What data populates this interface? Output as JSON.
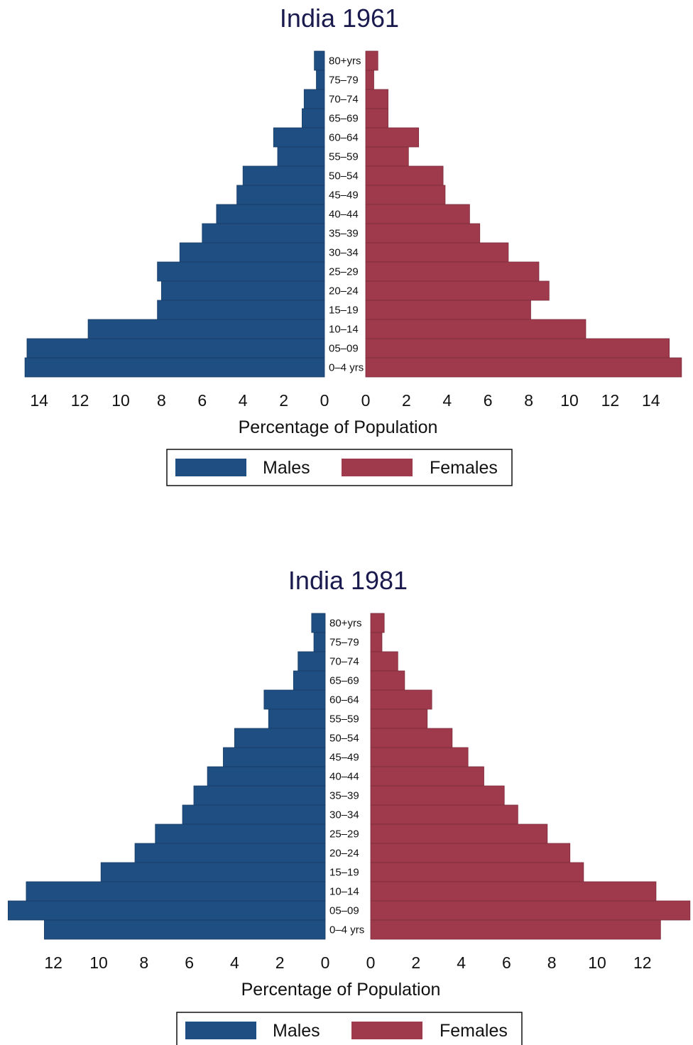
{
  "chart_data": [
    {
      "type": "bar",
      "orientation": "horizontal-pyramid",
      "title": "India 1961",
      "xlabel": "Percentage of Population",
      "categories": [
        "80+yrs",
        "75–79",
        "70–74",
        "65–69",
        "60–64",
        "55–59",
        "50–54",
        "45–49",
        "40–44",
        "35–39",
        "30–34",
        "25–29",
        "20–24",
        "15–19",
        "10–14",
        "05–09",
        "0–4 yrs"
      ],
      "series": [
        {
          "name": "Males",
          "color": "#1f4e82",
          "values": [
            0.5,
            0.4,
            1.0,
            1.1,
            2.5,
            2.3,
            4.0,
            4.3,
            5.3,
            6.0,
            7.1,
            8.2,
            8.0,
            8.2,
            11.6,
            14.6,
            14.7
          ]
        },
        {
          "name": "Females",
          "color": "#9e3a4c",
          "values": [
            0.6,
            0.4,
            1.1,
            1.1,
            2.6,
            2.1,
            3.8,
            3.9,
            5.1,
            5.6,
            7.0,
            8.5,
            9.0,
            8.1,
            10.8,
            14.9,
            15.5
          ]
        }
      ],
      "xticks": [
        "14",
        "12",
        "10",
        "8",
        "6",
        "4",
        "2",
        "0"
      ],
      "xlim": [
        0,
        15.5
      ],
      "grid": false,
      "legend": "bottom"
    },
    {
      "type": "bar",
      "orientation": "horizontal-pyramid",
      "title": "India 1981",
      "xlabel": "Percentage of Population",
      "categories": [
        "80+yrs",
        "75–79",
        "70–74",
        "65–69",
        "60–64",
        "55–59",
        "50–54",
        "45–49",
        "40–44",
        "35–39",
        "30–34",
        "25–29",
        "20–24",
        "15–19",
        "10–14",
        "05–09",
        "0–4 yrs"
      ],
      "series": [
        {
          "name": "Males",
          "color": "#1f4e82",
          "values": [
            0.6,
            0.5,
            1.2,
            1.4,
            2.7,
            2.5,
            4.0,
            4.5,
            5.2,
            5.8,
            6.3,
            7.5,
            8.4,
            9.9,
            13.2,
            14.0,
            12.4
          ]
        },
        {
          "name": "Females",
          "color": "#9e3a4c",
          "values": [
            0.6,
            0.5,
            1.2,
            1.5,
            2.7,
            2.5,
            3.6,
            4.3,
            5.0,
            5.9,
            6.5,
            7.8,
            8.8,
            9.4,
            12.6,
            14.1,
            12.8
          ]
        }
      ],
      "xticks": [
        "12",
        "10",
        "8",
        "6",
        "4",
        "2",
        "0"
      ],
      "xlim": [
        0,
        14.2
      ],
      "grid": false,
      "legend": "bottom"
    }
  ],
  "legend": {
    "males_label": "Males",
    "females_label": "Females"
  }
}
